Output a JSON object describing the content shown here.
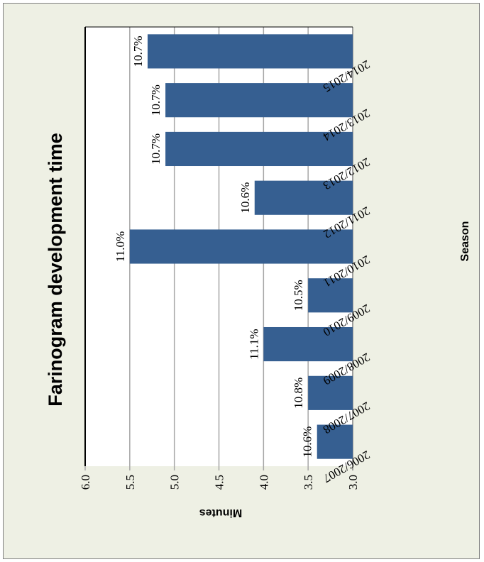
{
  "chart_data": {
    "type": "bar",
    "title": "Farinogram development time",
    "xlabel": "Season",
    "ylabel": "Minutes",
    "categories": [
      "2006/2007",
      "2007/2008",
      "2008/2009",
      "2009/2010",
      "2010/2011",
      "2011/2012",
      "2012/2013",
      "2013/2014",
      "2014/2015"
    ],
    "values": [
      3.4,
      3.5,
      4.0,
      3.5,
      5.5,
      4.1,
      5.1,
      5.1,
      5.3
    ],
    "data_labels": [
      "10.6%",
      "10.8%",
      "11.1%",
      "10.5%",
      "11.0%",
      "10.6%",
      "10.7%",
      "10.7%",
      "10.7%"
    ],
    "yticks": [
      "3.0",
      "3.5",
      "4.0",
      "4.5",
      "5.0",
      "5.5",
      "6.0"
    ],
    "ylim": [
      3.0,
      6.0
    ],
    "grid": true,
    "orientation": "rotated-90-ccw",
    "colors": {
      "bar": "#365f91",
      "grid": "#a6a6a6",
      "background": "#eef0e4",
      "plot": "#ffffff"
    }
  }
}
